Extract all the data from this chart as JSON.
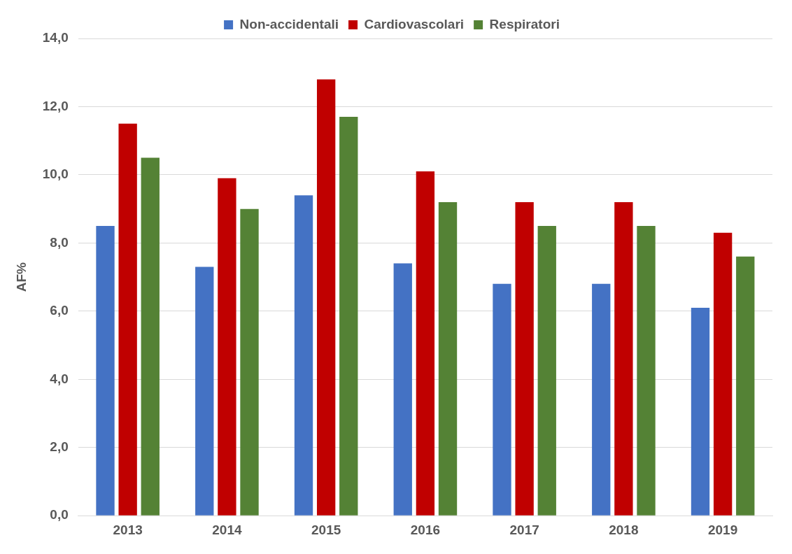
{
  "chart_data": {
    "type": "bar",
    "ylabel": "AF%",
    "categories": [
      "2013",
      "2014",
      "2015",
      "2016",
      "2017",
      "2018",
      "2019"
    ],
    "series": [
      {
        "name": "Non-accidentali",
        "color": "#4472c4",
        "values": [
          8.5,
          7.3,
          9.4,
          7.4,
          6.8,
          6.8,
          6.1
        ]
      },
      {
        "name": "Cardiovascolari",
        "color": "#c00000",
        "values": [
          11.5,
          9.9,
          12.8,
          10.1,
          9.2,
          9.2,
          8.3
        ]
      },
      {
        "name": "Respiratori",
        "color": "#548235",
        "values": [
          10.5,
          9.0,
          11.7,
          9.2,
          8.5,
          8.5,
          7.6
        ]
      }
    ],
    "ylim": [
      0,
      14
    ],
    "yticks": [
      {
        "value": 0,
        "label": "0,0"
      },
      {
        "value": 2,
        "label": "2,0"
      },
      {
        "value": 4,
        "label": "4,0"
      },
      {
        "value": 6,
        "label": "6,0"
      },
      {
        "value": 8,
        "label": "8,0"
      },
      {
        "value": 10,
        "label": "10,0"
      },
      {
        "value": 12,
        "label": "12,0"
      },
      {
        "value": 14,
        "label": "14,0"
      }
    ],
    "grid": "y",
    "legend": "top"
  }
}
